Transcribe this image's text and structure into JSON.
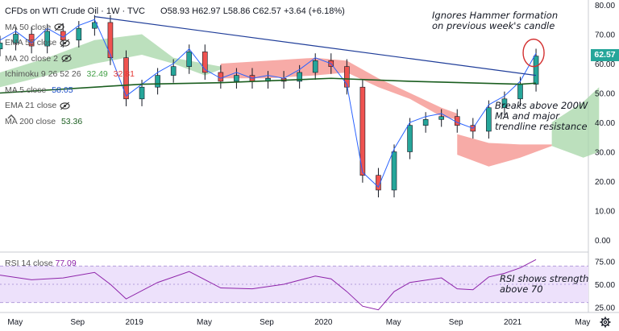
{
  "header": {
    "title": "CFDs on WTI Crude Oil · 1W · TVC",
    "ohlc": "O58.93 H62.97 L58.86 C62.57 +3.64 (+6.18%)"
  },
  "legend": [
    {
      "label": "MA 50 close",
      "icon": "eye-hidden-icon"
    },
    {
      "label": "EMA 55 close",
      "icon": "eye-hidden-icon"
    },
    {
      "label": "MA 20 close 2",
      "icon": "eye-hidden-icon"
    },
    {
      "label": "Ichimoku 9 26 52 26",
      "values": [
        "32.49",
        "32.81"
      ],
      "value_colors": [
        "#43a047",
        "#e53935"
      ]
    },
    {
      "label": "MA 5 close",
      "values": [
        "58.05"
      ],
      "value_colors": [
        "#1e50c8"
      ]
    },
    {
      "label": "EMA 21 close",
      "icon": "eye-hidden-icon"
    },
    {
      "label": "MA 200 close",
      "values": [
        "53.36"
      ],
      "value_colors": [
        "#1b5e20"
      ]
    }
  ],
  "annotations": {
    "hammer": "Ignores Hammer formation\non previous week's candle",
    "breakout": "Breaks above 200W\nMA and major\ntrendline resistance",
    "rsi": "RSI shows strength\nabove 70"
  },
  "rsi_label": "RSI 14 close",
  "rsi_value": "77.09",
  "price_badge": "62.57",
  "colors": {
    "up": "#26a69a",
    "down": "#ef5350",
    "trendline": "#1f3d99",
    "ma200": "#1b5e20",
    "ma5": "#2962ff",
    "cloud_green": "#a5d6a7",
    "cloud_red": "#f48f8a",
    "rsi": "#8e24aa",
    "rsi_band": "#ede1fb"
  },
  "chart_data": [
    {
      "type": "candlestick",
      "title": "CFDs on WTI Crude Oil · 1W · TVC",
      "x_tick_labels": [
        "May",
        "Sep",
        "2019",
        "May",
        "Sep",
        "2020",
        "May",
        "Sep",
        "2021",
        "May"
      ],
      "y_tick_labels": [
        "0.00",
        "10.00",
        "20.00",
        "30.00",
        "40.00",
        "50.00",
        "60.00",
        "70.00",
        "80.00"
      ],
      "ylim": [
        -2,
        81
      ],
      "grid": false,
      "series": [
        {
          "name": "Price (weekly close)",
          "dates": [
            "2018-04",
            "2018-05",
            "2018-06",
            "2018-07",
            "2018-08",
            "2018-09",
            "2018-10",
            "2018-11",
            "2018-12",
            "2019-01",
            "2019-02",
            "2019-03",
            "2019-04",
            "2019-05",
            "2019-06",
            "2019-07",
            "2019-08",
            "2019-09",
            "2019-10",
            "2019-11",
            "2019-12",
            "2020-01",
            "2020-02",
            "2020-03",
            "2020-04",
            "2020-05",
            "2020-06",
            "2020-07",
            "2020-08",
            "2020-09",
            "2020-10",
            "2020-11",
            "2020-12",
            "2021-01",
            "2021-02"
          ],
          "values": [
            67,
            70,
            66,
            71,
            68,
            72,
            74,
            62,
            48,
            52,
            56,
            59,
            64,
            57,
            54,
            56,
            54,
            55,
            54,
            57,
            61,
            59,
            52,
            22,
            17,
            30,
            39,
            41,
            42,
            39,
            37,
            45,
            48,
            53,
            62.57
          ]
        },
        {
          "name": "MA 200",
          "values_at": [
            "2018-04",
            "2019-01",
            "2019-06",
            "2020-01",
            "2020-06",
            "2021-01",
            "2021-02"
          ],
          "values": [
            50,
            53,
            53.5,
            55,
            54,
            53,
            53.36
          ]
        },
        {
          "name": "Trendline",
          "points": [
            [
              "2018-10",
              76
            ],
            [
              "2021-02",
              56
            ]
          ]
        }
      ]
    },
    {
      "type": "line",
      "title": "RSI 14 close",
      "ylim": [
        20,
        80
      ],
      "y_tick_labels": [
        "25.00",
        "50.00",
        "75.00"
      ],
      "band": [
        30,
        70
      ],
      "series": [
        {
          "name": "RSI 14",
          "dates": [
            "2018-04",
            "2018-06",
            "2018-08",
            "2018-10",
            "2018-11",
            "2018-12",
            "2019-02",
            "2019-04",
            "2019-06",
            "2019-08",
            "2019-10",
            "2019-12",
            "2020-01",
            "2020-02",
            "2020-03",
            "2020-04",
            "2020-05",
            "2020-06",
            "2020-08",
            "2020-09",
            "2020-10",
            "2020-11",
            "2020-12",
            "2021-01",
            "2021-02"
          ],
          "values": [
            60,
            55,
            57,
            63,
            50,
            34,
            52,
            64,
            46,
            45,
            50,
            59,
            56,
            42,
            26,
            22,
            42,
            52,
            57,
            45,
            44,
            58,
            62,
            68,
            77.09
          ]
        }
      ]
    }
  ]
}
